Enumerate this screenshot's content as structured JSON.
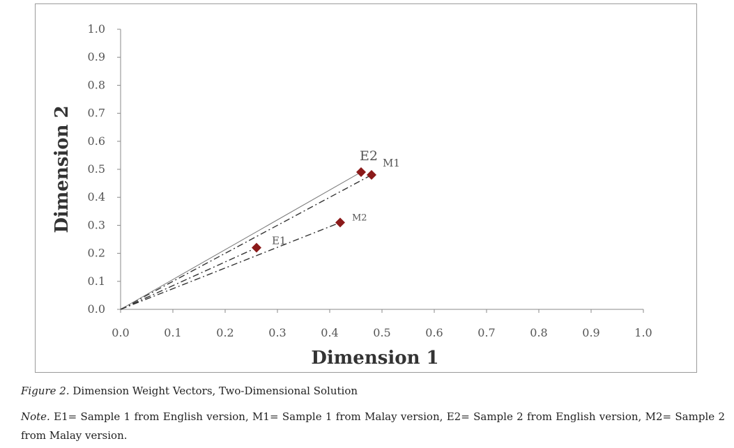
{
  "chart_data": {
    "type": "scatter",
    "xlabel": "Dimension 1",
    "ylabel": "Dimension 2",
    "xlim": [
      0.0,
      1.0
    ],
    "ylim": [
      0.0,
      1.0
    ],
    "x_ticks": [
      "0.0",
      "0.1",
      "0.2",
      "0.3",
      "0.4",
      "0.5",
      "0.6",
      "0.7",
      "0.8",
      "0.9",
      "1.0"
    ],
    "y_ticks": [
      "0.0",
      "0.1",
      "0.2",
      "0.3",
      "0.4",
      "0.5",
      "0.6",
      "0.7",
      "0.8",
      "0.9",
      "1.0"
    ],
    "grid": false,
    "legend": "none",
    "marker_color": "#8b1a1a",
    "points": [
      {
        "label": "E1",
        "x": 0.26,
        "y": 0.22,
        "line": "dash-dot"
      },
      {
        "label": "M1",
        "x": 0.48,
        "y": 0.48,
        "line": "dash-dot"
      },
      {
        "label": "E2",
        "x": 0.46,
        "y": 0.49,
        "line": "solid"
      },
      {
        "label": "M2",
        "x": 0.42,
        "y": 0.31,
        "line": "dash-dot"
      }
    ]
  },
  "caption": {
    "label": "Figure 2.",
    "text": "Dimension Weight Vectors, Two-Dimensional Solution"
  },
  "note": {
    "label": "Note.",
    "text": "E1= Sample 1 from English version, M1= Sample 1 from Malay version, E2= Sample 2 from English version, M2= Sample 2 from Malay version."
  }
}
